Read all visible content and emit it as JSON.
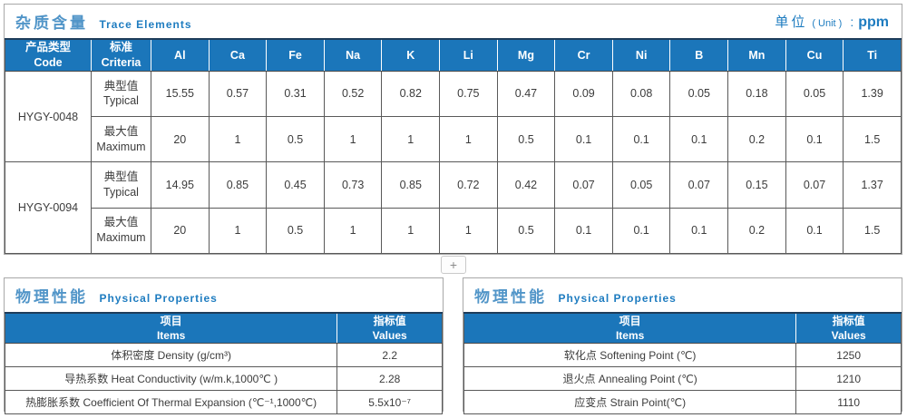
{
  "colors": {
    "header_blue": "#1b76ba",
    "accent_blue": "#1e7cc0",
    "title_zh_blue": "#5195c8",
    "navy_rule": "#1e3c5a",
    "panel_border_gray": "#a8a8a8",
    "cell_border_dark": "#595959",
    "text_dark": "#3c3c3c"
  },
  "trace": {
    "title_zh": "杂质含量",
    "title_en": "Trace Elements",
    "unit": {
      "zh": "单位",
      "en": "( Unit )",
      "colon": ":",
      "value": "ppm"
    },
    "code_header": {
      "zh": "产品类型",
      "en": "Code"
    },
    "criteria_header": {
      "zh": "标准",
      "en": "Criteria"
    },
    "typical_label": {
      "zh": "典型值",
      "en": "Typical"
    },
    "maximum_label": {
      "zh": "最大值",
      "en": "Maximum"
    },
    "elements": [
      "Al",
      "Ca",
      "Fe",
      "Na",
      "K",
      "Li",
      "Mg",
      "Cr",
      "Ni",
      "B",
      "Mn",
      "Cu",
      "Ti"
    ],
    "products": [
      {
        "code": "HYGY-0048",
        "typical": [
          "15.55",
          "0.57",
          "0.31",
          "0.52",
          "0.82",
          "0.75",
          "0.47",
          "0.09",
          "0.08",
          "0.05",
          "0.18",
          "0.05",
          "1.39"
        ],
        "maximum": [
          "20",
          "1",
          "0.5",
          "1",
          "1",
          "1",
          "0.5",
          "0.1",
          "0.1",
          "0.1",
          "0.2",
          "0.1",
          "1.5"
        ]
      },
      {
        "code": "HYGY-0094",
        "typical": [
          "14.95",
          "0.85",
          "0.45",
          "0.73",
          "0.85",
          "0.72",
          "0.42",
          "0.07",
          "0.05",
          "0.07",
          "0.15",
          "0.07",
          "1.37"
        ],
        "maximum": [
          "20",
          "1",
          "0.5",
          "1",
          "1",
          "1",
          "0.5",
          "0.1",
          "0.1",
          "0.1",
          "0.2",
          "0.1",
          "1.5"
        ]
      }
    ]
  },
  "divider": {
    "plus": "+"
  },
  "physical_tables": [
    {
      "title_zh": "物理性能",
      "title_en": "Physical Properties",
      "items_header": {
        "zh": "项目",
        "en": "Items"
      },
      "values_header": {
        "zh": "指标值",
        "en": "Values"
      },
      "rows": [
        {
          "item": "体积密度 Density (g/cm³)",
          "value": "2.2"
        },
        {
          "item": "导热系数 Heat Conductivity (w/m.k,1000℃ )",
          "value": "2.28"
        },
        {
          "item": "热膨胀系数 Coefficient Of Thermal Expansion (℃⁻¹,1000℃)",
          "value": "5.5x10⁻⁷"
        }
      ]
    },
    {
      "title_zh": "物理性能",
      "title_en": "Physical Properties",
      "items_header": {
        "zh": "项目",
        "en": "Items"
      },
      "values_header": {
        "zh": "指标值",
        "en": "Values"
      },
      "rows": [
        {
          "item": "软化点 Softening Point (℃)",
          "value": "1250"
        },
        {
          "item": "退火点 Annealing Point (℃)",
          "value": "1210"
        },
        {
          "item": "应变点 Strain Point(℃)",
          "value": "1110"
        }
      ]
    }
  ]
}
